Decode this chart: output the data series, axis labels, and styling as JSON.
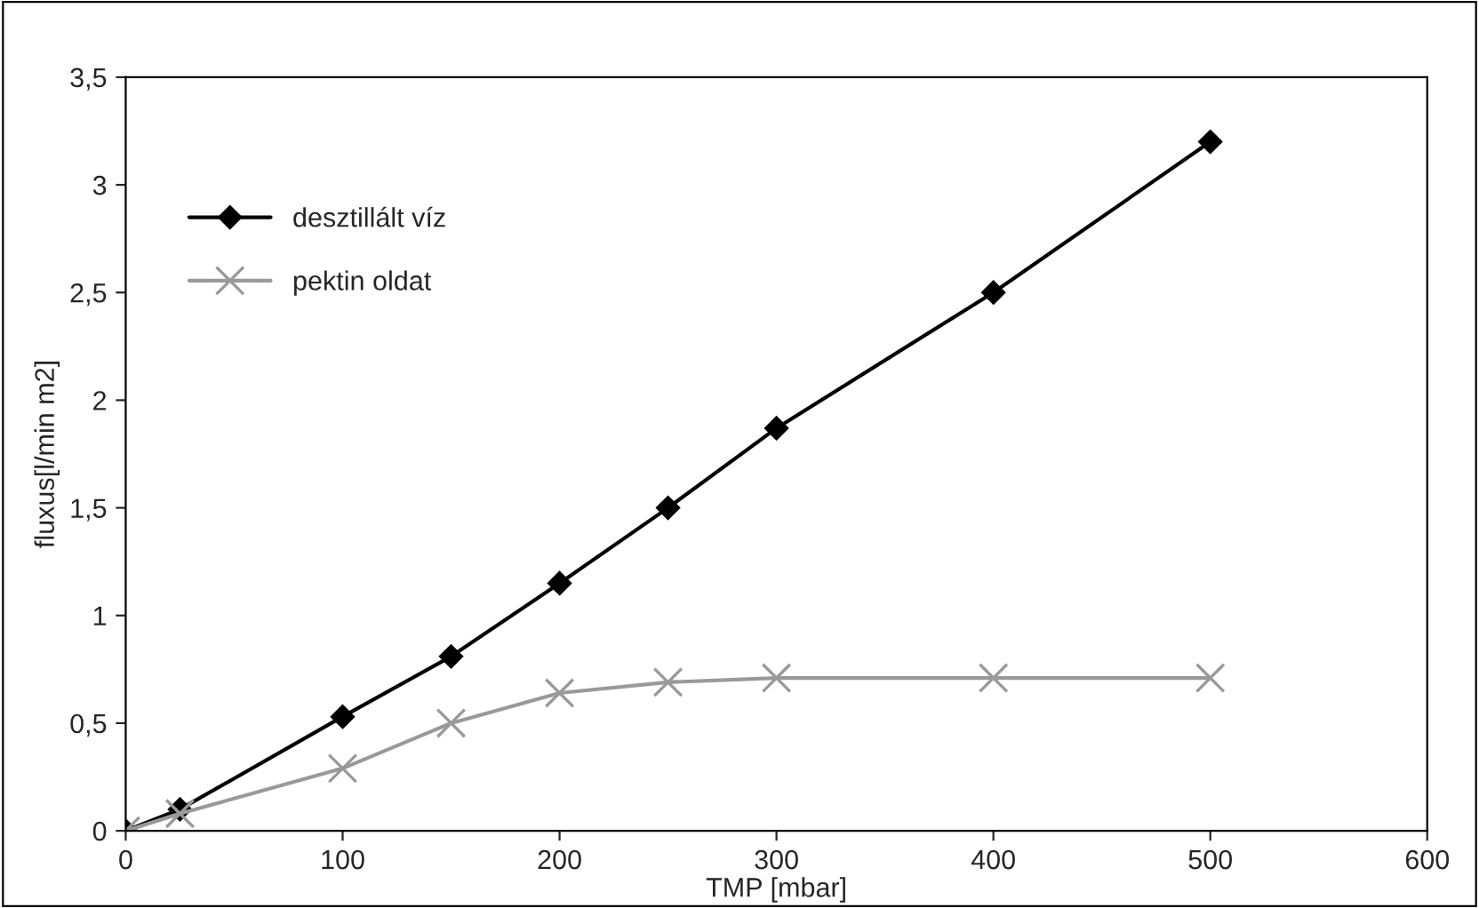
{
  "chart_data": {
    "type": "line",
    "xlabel": "TMP [mbar]",
    "ylabel": "fluxus[l/min m2]",
    "series": [
      {
        "name": "desztillált víz",
        "color": "#000000",
        "marker": "diamond",
        "x": [
          0,
          25,
          100,
          150,
          200,
          250,
          300,
          400,
          500
        ],
        "values": [
          0,
          0.1,
          0.53,
          0.81,
          1.15,
          1.5,
          1.87,
          2.5,
          3.2
        ]
      },
      {
        "name": "pektin oldat",
        "color": "#999999",
        "marker": "cross",
        "x": [
          0,
          25,
          100,
          150,
          200,
          250,
          300,
          400,
          500
        ],
        "values": [
          0,
          0.08,
          0.29,
          0.5,
          0.64,
          0.69,
          0.71,
          0.71,
          0.71
        ]
      }
    ],
    "xlim": [
      0,
      600
    ],
    "xticks": [
      0,
      100,
      200,
      300,
      400,
      500,
      600
    ],
    "ylim": [
      0,
      3.5
    ],
    "yticks": [
      0,
      {
        "value": 0.5,
        "label": "0,5"
      },
      1,
      {
        "value": 1.5,
        "label": "1,5"
      },
      2,
      {
        "value": 2.5,
        "label": "2,5"
      },
      3,
      {
        "value": 3.5,
        "label": "3,5"
      }
    ],
    "grid": false,
    "legend": "top left"
  }
}
